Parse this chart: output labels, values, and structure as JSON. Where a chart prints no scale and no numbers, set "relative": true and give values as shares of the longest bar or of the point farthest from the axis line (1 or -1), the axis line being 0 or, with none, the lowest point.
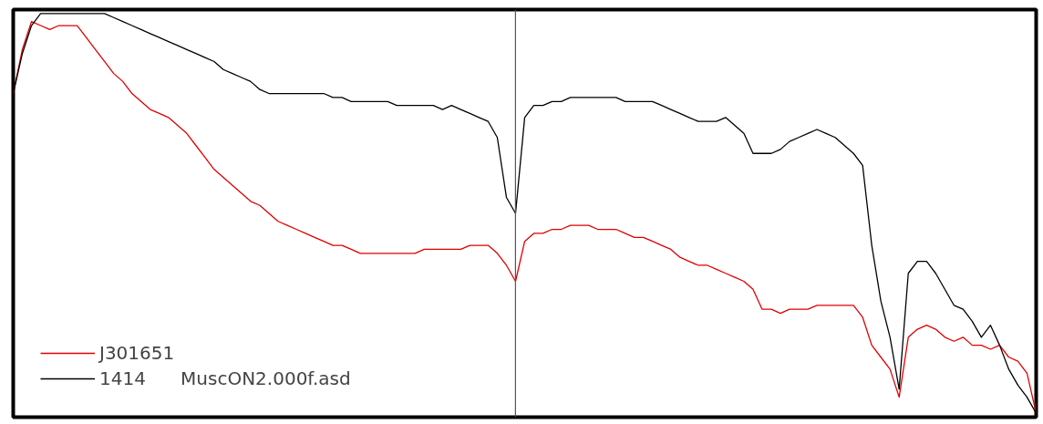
{
  "chart_data": {
    "type": "line",
    "relative": true,
    "categories": [
      null,
      null,
      null,
      null,
      null,
      null,
      null,
      null,
      null,
      null,
      null,
      null,
      null,
      null,
      null,
      null,
      null,
      null,
      null,
      null,
      null,
      null,
      null,
      null,
      null,
      null,
      null,
      null,
      null,
      null,
      null,
      null,
      null,
      null,
      null,
      null,
      null,
      null,
      null,
      null,
      null,
      null,
      null,
      null,
      null,
      null,
      null,
      null,
      null,
      null,
      null,
      null,
      null,
      null,
      null,
      null,
      null,
      null,
      null,
      null,
      null,
      null,
      null,
      null,
      null,
      null,
      null,
      null,
      null,
      null,
      null,
      null,
      null,
      null,
      null,
      null,
      null,
      null,
      null,
      null,
      null,
      null,
      null,
      null,
      null,
      null,
      null,
      null,
      null,
      null,
      null,
      null,
      null,
      null,
      null,
      null,
      null,
      null,
      null,
      null,
      null,
      null,
      null,
      null,
      null,
      null,
      null,
      null,
      null,
      null,
      null,
      null,
      null
    ],
    "series": [
      {
        "name": "J301651",
        "color": "#e00000",
        "values": [
          0.8,
          0.91,
          0.98,
          0.97,
          0.96,
          0.97,
          0.97,
          0.97,
          0.94,
          0.91,
          0.88,
          0.85,
          0.83,
          0.8,
          0.78,
          0.76,
          0.75,
          0.74,
          0.72,
          0.7,
          0.67,
          0.64,
          0.61,
          0.59,
          0.57,
          0.55,
          0.53,
          0.52,
          0.5,
          0.48,
          0.47,
          0.46,
          0.45,
          0.44,
          0.43,
          0.42,
          0.42,
          0.41,
          0.4,
          0.4,
          0.4,
          0.4,
          0.4,
          0.4,
          0.4,
          0.41,
          0.41,
          0.41,
          0.41,
          0.41,
          0.42,
          0.42,
          0.42,
          0.4,
          0.37,
          0.33,
          0.43,
          0.45,
          0.45,
          0.46,
          0.46,
          0.47,
          0.47,
          0.47,
          0.46,
          0.46,
          0.46,
          0.45,
          0.44,
          0.44,
          0.43,
          0.42,
          0.41,
          0.39,
          0.38,
          0.37,
          0.37,
          0.36,
          0.35,
          0.34,
          0.33,
          0.31,
          0.26,
          0.26,
          0.25,
          0.26,
          0.26,
          0.26,
          0.27,
          0.27,
          0.27,
          0.27,
          0.27,
          0.24,
          0.17,
          0.14,
          0.11,
          0.04,
          0.19,
          0.21,
          0.22,
          0.21,
          0.19,
          0.18,
          0.19,
          0.17,
          0.17,
          0.16,
          0.17,
          0.14,
          0.13,
          0.1,
          0.0
        ]
      },
      {
        "name": "1414      MuscON2.000f.asd",
        "color": "#000000",
        "values": [
          0.8,
          0.9,
          0.97,
          1.0,
          1.0,
          1.0,
          1.0,
          1.0,
          1.0,
          1.0,
          1.0,
          0.99,
          0.98,
          0.97,
          0.96,
          0.95,
          0.94,
          0.93,
          0.92,
          0.91,
          0.9,
          0.89,
          0.88,
          0.86,
          0.85,
          0.84,
          0.83,
          0.81,
          0.8,
          0.8,
          0.8,
          0.8,
          0.8,
          0.8,
          0.8,
          0.79,
          0.79,
          0.78,
          0.78,
          0.78,
          0.78,
          0.78,
          0.77,
          0.77,
          0.77,
          0.77,
          0.77,
          0.76,
          0.77,
          0.76,
          0.75,
          0.74,
          0.73,
          0.69,
          0.54,
          0.5,
          0.74,
          0.77,
          0.77,
          0.78,
          0.78,
          0.79,
          0.79,
          0.79,
          0.79,
          0.79,
          0.79,
          0.78,
          0.78,
          0.78,
          0.78,
          0.77,
          0.76,
          0.75,
          0.74,
          0.73,
          0.73,
          0.73,
          0.74,
          0.72,
          0.7,
          0.65,
          0.65,
          0.65,
          0.66,
          0.68,
          0.69,
          0.7,
          0.71,
          0.7,
          0.69,
          0.67,
          0.65,
          0.62,
          0.42,
          0.28,
          0.19,
          0.06,
          0.35,
          0.38,
          0.38,
          0.35,
          0.31,
          0.27,
          0.26,
          0.23,
          0.19,
          0.22,
          0.17,
          0.11,
          0.07,
          0.04,
          0.0
        ]
      }
    ],
    "legend": "bottom left",
    "grid": false,
    "tick_labels": false,
    "line_style": "solid"
  }
}
